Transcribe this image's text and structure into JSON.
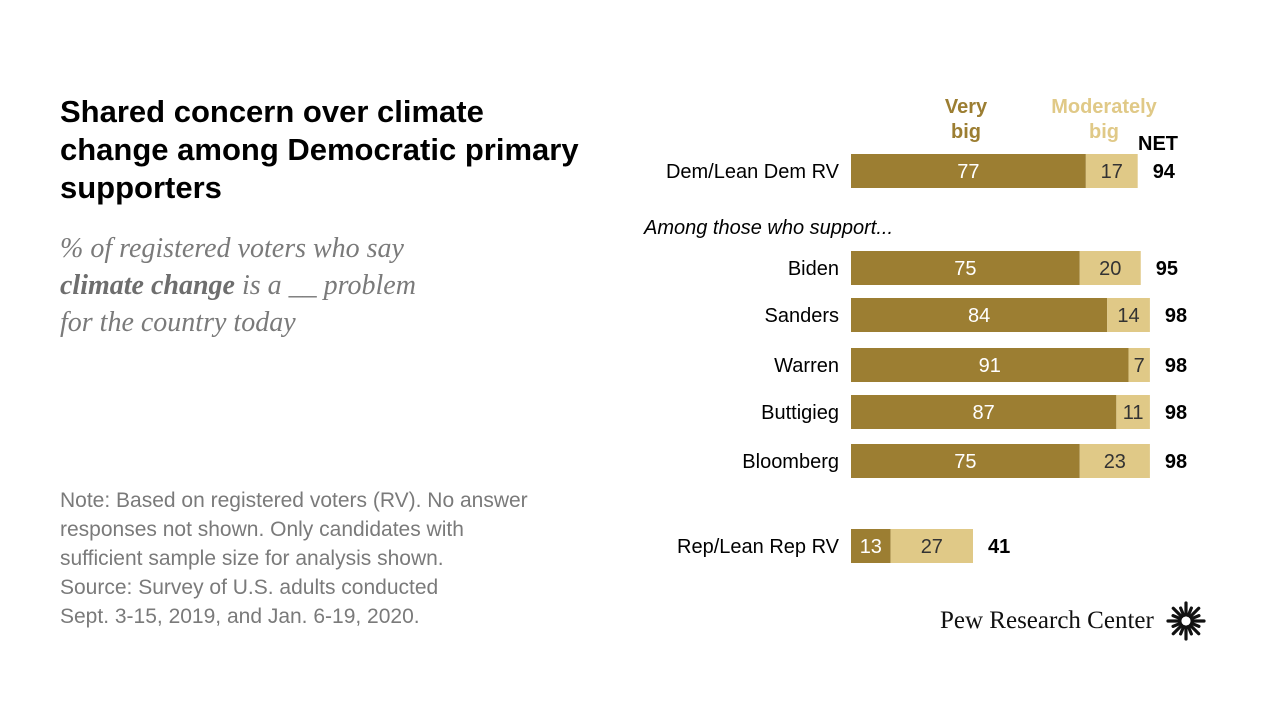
{
  "title": "Shared concern over climate change among Democratic primary supporters",
  "subtitle": {
    "line1": "% of registered voters who say",
    "emphasis": "climate change",
    "line2_rest": " is a __ problem",
    "line3": "for the country today"
  },
  "note": [
    "Note: Based on registered voters (RV). No answer",
    "responses not shown. Only candidates with",
    "sufficient sample size for analysis shown.",
    "Source: Survey of U.S. adults conducted",
    "Sept. 3-15, 2019, and Jan. 6-19, 2020."
  ],
  "logo": {
    "text": "Pew Research Center",
    "icon": "pew-sunburst-icon"
  },
  "colors": {
    "very_big": "#9c7e32",
    "moderately_big": "#e0c987",
    "very_big_label": "#9c7e32",
    "moderately_big_label": "#e0c987"
  },
  "chart_data": {
    "type": "bar",
    "orientation": "horizontal",
    "stacked": true,
    "legend": {
      "placement": "top",
      "entries": [
        {
          "key": "very_big",
          "lines": [
            "Very",
            "big"
          ]
        },
        {
          "key": "moderately_big",
          "lines": [
            "Moderately",
            "big"
          ]
        }
      ]
    },
    "net_header": "NET",
    "section_label": "Among those who support...",
    "rows": [
      {
        "label": "Dem/Lean Dem RV",
        "very_big": 77,
        "moderately_big": 17,
        "net": 94
      },
      {
        "label": "Biden",
        "very_big": 75,
        "moderately_big": 20,
        "net": 95
      },
      {
        "label": "Sanders",
        "very_big": 84,
        "moderately_big": 14,
        "net": 98
      },
      {
        "label": "Warren",
        "very_big": 91,
        "moderately_big": 7,
        "net": 98
      },
      {
        "label": "Buttigieg",
        "very_big": 87,
        "moderately_big": 11,
        "net": 98
      },
      {
        "label": "Bloomberg",
        "very_big": 75,
        "moderately_big": 23,
        "net": 98
      },
      {
        "label": "Rep/Lean Rep RV",
        "very_big": 13,
        "moderately_big": 27,
        "net": 41
      }
    ]
  }
}
